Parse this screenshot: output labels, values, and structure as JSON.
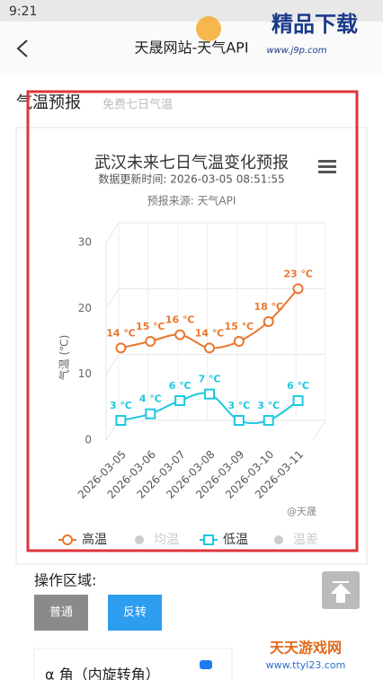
{
  "status_time": "9:21",
  "header": {
    "title": "天晟网站-天气API"
  },
  "watermarks": {
    "top_brand": "精品下载",
    "top_url": "www.j9p.com",
    "bottom_brand": "天天游戏网",
    "bottom_url": "www.ttyl23.com"
  },
  "section": {
    "title": "气温预报",
    "subtitle": "免费七日气温"
  },
  "chart_data": {
    "type": "line",
    "title": "武汉未来七日气温变化预报",
    "subtitle": "数据更新时间: 2026-03-05 08:51:55",
    "source": "预报来源: 天气API",
    "ylabel": "气温 (℃)",
    "credit": "@天晟",
    "categories": [
      "2026-03-05",
      "2026-03-06",
      "2026-03-07",
      "2026-03-08",
      "2026-03-09",
      "2026-03-10",
      "2026-03-11"
    ],
    "ylim": [
      0,
      30
    ],
    "yticks": [
      0,
      10,
      20,
      30
    ],
    "grid": true,
    "series": [
      {
        "name": "高温",
        "color": "#e8772e",
        "marker": "circle",
        "values": [
          14,
          15,
          16,
          14,
          15,
          18,
          23
        ],
        "value_labels": [
          "14 ℃",
          "15 ℃",
          "16 ℃",
          "14 ℃",
          "15 ℃",
          "18 ℃",
          "23 ℃"
        ]
      },
      {
        "name": "低温",
        "color": "#1ec8e0",
        "marker": "square",
        "values": [
          3,
          4,
          6,
          7,
          3,
          3,
          6
        ],
        "value_labels": [
          "3 ℃",
          "4 ℃",
          "6 ℃",
          "7 ℃",
          "3 ℃",
          "3 ℃",
          "6 ℃"
        ]
      }
    ],
    "hidden_legend": [
      "均温",
      "温差"
    ]
  },
  "controls": {
    "title": "操作区域:",
    "buttons": [
      "普通",
      "反转"
    ],
    "slider_label": "α 角（内旋转角）"
  }
}
